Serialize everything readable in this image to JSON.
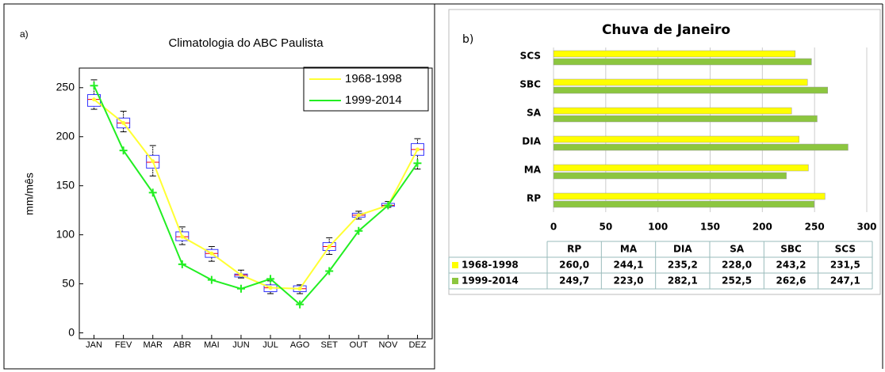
{
  "chart_data": [
    {
      "type": "line",
      "panel_label": "a)",
      "title": "Climatologia do ABC Paulista",
      "ylabel": "mm/mês",
      "categories": [
        "JAN",
        "FEV",
        "MAR",
        "ABR",
        "MAI",
        "JUN",
        "JUL",
        "AGO",
        "SET",
        "OUT",
        "NOV",
        "DEZ"
      ],
      "series": [
        {
          "name": "1968-1998",
          "color": "#ffff33",
          "values": [
            238,
            214,
            175,
            98,
            81,
            59,
            46,
            45,
            88,
            120,
            130,
            187
          ]
        },
        {
          "name": "1999-2014",
          "color": "#22ee22",
          "values": [
            252,
            186,
            143,
            70,
            54,
            45,
            55,
            29,
            63,
            104,
            130,
            173
          ]
        }
      ],
      "boxes": [
        {
          "whislo": 228,
          "q1": 231,
          "med": 238,
          "q3": 243,
          "whishi": 258
        },
        {
          "whislo": 205,
          "q1": 209,
          "med": 214,
          "q3": 219,
          "whishi": 226
        },
        {
          "whislo": 160,
          "q1": 168,
          "med": 174,
          "q3": 181,
          "whishi": 191
        },
        {
          "whislo": 90,
          "q1": 94,
          "med": 98,
          "q3": 103,
          "whishi": 108
        },
        {
          "whislo": 73,
          "q1": 77,
          "med": 81,
          "q3": 85,
          "whishi": 88
        },
        {
          "whislo": 56,
          "q1": 57,
          "med": 59,
          "q3": 60,
          "whishi": 64
        },
        {
          "whislo": 40,
          "q1": 42,
          "med": 46,
          "q3": 49,
          "whishi": 53
        },
        {
          "whislo": 40,
          "q1": 42,
          "med": 45,
          "q3": 48,
          "whishi": 49
        },
        {
          "whislo": 80,
          "q1": 84,
          "med": 88,
          "q3": 92,
          "whishi": 97
        },
        {
          "whislo": 116,
          "q1": 118,
          "med": 120,
          "q3": 122,
          "whishi": 124
        },
        {
          "whislo": 128,
          "q1": 129,
          "med": 130,
          "q3": 132,
          "whishi": 134
        },
        {
          "whislo": 167,
          "q1": 181,
          "med": 187,
          "q3": 193,
          "whishi": 198
        }
      ],
      "box_color": "#3333ff",
      "median_color": "#ff0000",
      "ylim": [
        -6,
        270
      ],
      "yticks": [
        0,
        50,
        100,
        150,
        200,
        250
      ],
      "legend": "upper right"
    },
    {
      "type": "hbar",
      "panel_label": "b)",
      "title": "Chuva de Janeiro",
      "categories": [
        "RP",
        "MA",
        "DIA",
        "SA",
        "SBC",
        "SCS"
      ],
      "series": [
        {
          "name": "1968-1998",
          "color": "#ffff00",
          "values": [
            260.0,
            244.1,
            235.2,
            228.0,
            243.2,
            231.5
          ],
          "value_labels": [
            "260,0",
            "244,1",
            "235,2",
            "228,0",
            "243,2",
            "231,5"
          ]
        },
        {
          "name": "1999-2014",
          "color": "#8cc63f",
          "values": [
            249.7,
            223.0,
            282.1,
            252.5,
            262.6,
            247.1
          ],
          "value_labels": [
            "249,7",
            "223,0",
            "282,1",
            "252,5",
            "262,6",
            "247,1"
          ]
        }
      ],
      "xlim": [
        0,
        300
      ],
      "xticks": [
        0,
        50,
        100,
        150,
        200,
        250,
        300
      ],
      "grid": true,
      "table": true
    }
  ]
}
